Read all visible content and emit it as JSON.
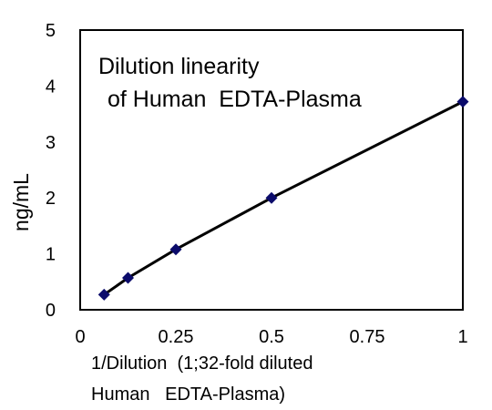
{
  "chart_data": {
    "type": "line",
    "title_lines": [
      "Dilution linearity",
      "of Human  EDTA-Plasma"
    ],
    "xlabel_lines": [
      "1/Dilution  (1;32-fold diluted",
      "Human   EDTA-Plasma)"
    ],
    "ylabel": "ng/mL",
    "xlim": [
      0,
      1
    ],
    "ylim": [
      0,
      5
    ],
    "xticks": [
      0,
      0.25,
      0.5,
      0.75,
      1
    ],
    "xtick_labels": [
      "0",
      "0.25",
      "0.5",
      "0.75",
      "1"
    ],
    "yticks": [
      0,
      1,
      2,
      3,
      4,
      5
    ],
    "ytick_labels": [
      "0",
      "1",
      "2",
      "3",
      "4",
      "5"
    ],
    "grid": false,
    "legend": "none",
    "series": [
      {
        "x": [
          0.0625,
          0.125,
          0.25,
          0.5,
          1
        ],
        "y": [
          0.27,
          0.57,
          1.08,
          2.0,
          3.72
        ],
        "color": "#0b0b6b",
        "line_color": "#000000",
        "marker": "diamond"
      }
    ]
  }
}
